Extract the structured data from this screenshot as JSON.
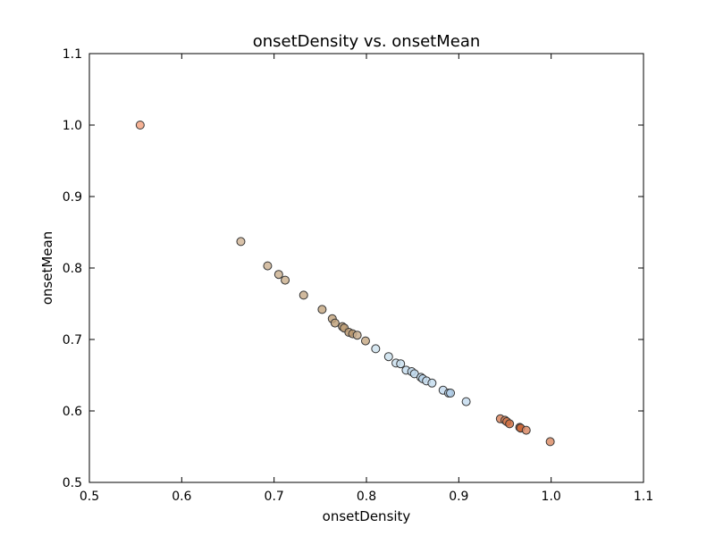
{
  "chart_data": {
    "type": "scatter",
    "title": "onsetDensity vs. onsetMean",
    "xlabel": "onsetDensity",
    "ylabel": "onsetMean",
    "xlim": [
      0.5,
      1.1
    ],
    "ylim": [
      0.5,
      1.1
    ],
    "xticks": [
      "0.5",
      "0.6",
      "0.7",
      "0.8",
      "0.9",
      "1.0",
      "1.1"
    ],
    "yticks": [
      "0.5",
      "0.6",
      "0.7",
      "0.8",
      "0.9",
      "1.0",
      "1.1"
    ],
    "grid": false,
    "points": [
      {
        "x": 0.555,
        "y": 1.0,
        "color": "#f4a582"
      },
      {
        "x": 0.664,
        "y": 0.837,
        "color": "#d2b79a"
      },
      {
        "x": 0.693,
        "y": 0.803,
        "color": "#cfb596"
      },
      {
        "x": 0.705,
        "y": 0.791,
        "color": "#cdb393"
      },
      {
        "x": 0.712,
        "y": 0.783,
        "color": "#cbb191"
      },
      {
        "x": 0.732,
        "y": 0.762,
        "color": "#c8ad8c"
      },
      {
        "x": 0.752,
        "y": 0.742,
        "color": "#c5a985"
      },
      {
        "x": 0.763,
        "y": 0.729,
        "color": "#c2a580"
      },
      {
        "x": 0.766,
        "y": 0.723,
        "color": "#c0a27c"
      },
      {
        "x": 0.774,
        "y": 0.718,
        "color": "#be9f78"
      },
      {
        "x": 0.776,
        "y": 0.716,
        "color": "#bd9d76"
      },
      {
        "x": 0.781,
        "y": 0.71,
        "color": "#bb9a72"
      },
      {
        "x": 0.785,
        "y": 0.708,
        "color": "#b99870"
      },
      {
        "x": 0.79,
        "y": 0.706,
        "color": "#c9ae8e"
      },
      {
        "x": 0.799,
        "y": 0.698,
        "color": "#c7aa87"
      },
      {
        "x": 0.81,
        "y": 0.687,
        "color": "#cfe3ef"
      },
      {
        "x": 0.824,
        "y": 0.676,
        "color": "#cde2ef"
      },
      {
        "x": 0.832,
        "y": 0.667,
        "color": "#cbe1ee"
      },
      {
        "x": 0.837,
        "y": 0.666,
        "color": "#c9dfee"
      },
      {
        "x": 0.843,
        "y": 0.657,
        "color": "#c6ddee"
      },
      {
        "x": 0.849,
        "y": 0.655,
        "color": "#c3dbed"
      },
      {
        "x": 0.852,
        "y": 0.652,
        "color": "#bfd8ec"
      },
      {
        "x": 0.859,
        "y": 0.647,
        "color": "#bcd6eb"
      },
      {
        "x": 0.861,
        "y": 0.645,
        "color": "#b9d4ea"
      },
      {
        "x": 0.865,
        "y": 0.642,
        "color": "#c8def0"
      },
      {
        "x": 0.871,
        "y": 0.639,
        "color": "#c6ddef"
      },
      {
        "x": 0.883,
        "y": 0.629,
        "color": "#c4dbee"
      },
      {
        "x": 0.889,
        "y": 0.625,
        "color": "#b5d1ea"
      },
      {
        "x": 0.891,
        "y": 0.625,
        "color": "#b1cfe9"
      },
      {
        "x": 0.908,
        "y": 0.613,
        "color": "#c5dcef"
      },
      {
        "x": 0.945,
        "y": 0.589,
        "color": "#d9865f"
      },
      {
        "x": 0.95,
        "y": 0.587,
        "color": "#d67e55"
      },
      {
        "x": 0.952,
        "y": 0.585,
        "color": "#d3784c"
      },
      {
        "x": 0.955,
        "y": 0.582,
        "color": "#cf7043"
      },
      {
        "x": 0.966,
        "y": 0.577,
        "color": "#cd6a3c"
      },
      {
        "x": 0.967,
        "y": 0.576,
        "color": "#cb6536"
      },
      {
        "x": 0.973,
        "y": 0.573,
        "color": "#d98a66"
      },
      {
        "x": 0.999,
        "y": 0.557,
        "color": "#dc8e69"
      }
    ]
  }
}
